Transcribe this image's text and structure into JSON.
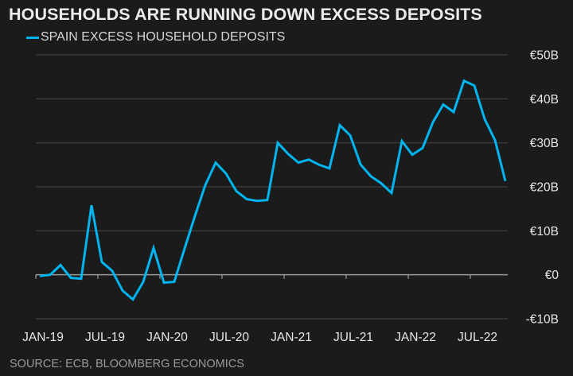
{
  "title": "HOUSEHOLDS ARE RUNNING DOWN EXCESS DEPOSITS",
  "source": "SOURCE: ECB, BLOOMBERG ECONOMICS",
  "colors": {
    "background": "#1b1b1b",
    "series": "#00b4f0",
    "grid": "#3a3a3a",
    "zero_axis": "#9a9a9a"
  },
  "chart_data": {
    "type": "line",
    "title": "HOUSEHOLDS ARE RUNNING DOWN EXCESS DEPOSITS",
    "xlabel": "",
    "ylabel": "",
    "ylim": [
      -10,
      50
    ],
    "yticks": [
      50,
      40,
      30,
      20,
      10,
      0,
      -10
    ],
    "ytick_labels": [
      "€50B",
      "€40B",
      "€30B",
      "€20B",
      "€10B",
      "€0",
      "-€10B"
    ],
    "xtick_labels": [
      "JAN-19",
      "JUL-19",
      "JAN-20",
      "JUL-20",
      "JAN-21",
      "JUL-21",
      "JAN-22",
      "JUL-22"
    ],
    "grid": true,
    "legend_position": "top-left",
    "x": [
      "2019-01",
      "2019-02",
      "2019-03",
      "2019-04",
      "2019-05",
      "2019-06",
      "2019-07",
      "2019-08",
      "2019-09",
      "2019-10",
      "2019-11",
      "2019-12",
      "2020-01",
      "2020-02",
      "2020-03",
      "2020-04",
      "2020-05",
      "2020-06",
      "2020-07",
      "2020-08",
      "2020-09",
      "2020-10",
      "2020-11",
      "2020-12",
      "2021-01",
      "2021-02",
      "2021-03",
      "2021-04",
      "2021-05",
      "2021-06",
      "2021-07",
      "2021-08",
      "2021-09",
      "2021-10",
      "2021-11",
      "2021-12",
      "2022-01",
      "2022-02",
      "2022-03",
      "2022-04",
      "2022-05",
      "2022-06",
      "2022-07",
      "2022-08",
      "2022-09",
      "2022-10"
    ],
    "series": [
      {
        "name": "SPAIN EXCESS HOUSEHOLD DEPOSITS",
        "unit": "€B",
        "values": [
          -0.3,
          0.0,
          2.2,
          -0.7,
          -0.9,
          15.8,
          2.9,
          0.9,
          -3.6,
          -5.6,
          -1.6,
          6.1,
          -1.8,
          -1.6,
          6.0,
          13.4,
          20.4,
          25.5,
          23.0,
          19.0,
          17.2,
          16.8,
          17.0,
          30.0,
          27.5,
          25.5,
          26.2,
          25.0,
          24.2,
          34.0,
          31.7,
          25.1,
          22.4,
          20.8,
          18.6,
          30.4,
          27.3,
          28.8,
          34.7,
          38.7,
          37.0,
          44.1,
          43.0,
          35.4,
          30.6,
          21.3
        ]
      }
    ]
  }
}
